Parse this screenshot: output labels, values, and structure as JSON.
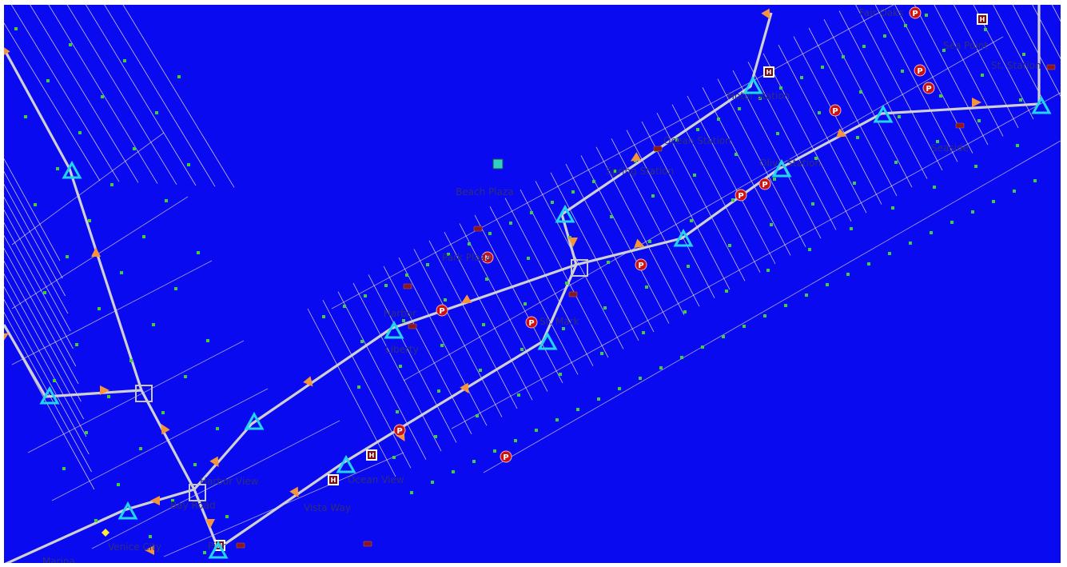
{
  "map": {
    "background": "#0a0af0",
    "colors": {
      "grid_line": "#e9e4d6",
      "road": "#d0d0d0",
      "node": "#3fcf3f",
      "station_triangle": "#22d4f0",
      "arrow": "#f7943a",
      "parking": "#cc1111",
      "hotel": "#7a1010",
      "stop": "#8a1a1a",
      "label": "#2f2f7a"
    },
    "icons": [
      "station-triangle-icon",
      "interchange-square-icon",
      "direction-arrow-icon",
      "parking-icon",
      "hotel-icon",
      "bus-stop-icon",
      "node-dot-icon"
    ],
    "parking_letter": "P",
    "hotel_letter": "H",
    "labels": [
      "Hotel Station",
      "Olive Station",
      "St. Station",
      "Ocean Station",
      "Spring Station",
      "Liberty",
      "Seaside",
      "Vista Way",
      "Ocean View",
      "Park Plaza",
      "Harbor",
      "Beach Plaza",
      "Pier",
      "Venice City",
      "St. Mark",
      "Bay Road",
      "Sea Point",
      "Fair Oaks",
      "Harbor View",
      "Marina"
    ]
  }
}
